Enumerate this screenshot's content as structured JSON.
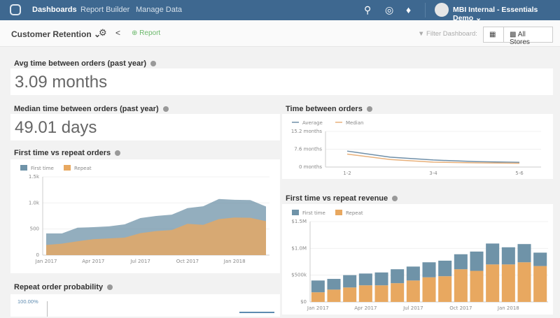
{
  "nav": {
    "items": [
      "Dashboards",
      "Report Builder",
      "Manage Data"
    ],
    "user": "MBI Internal - Essentials Demo ⌄",
    "icons": [
      "search-icon",
      "globe-icon",
      "bell-icon"
    ]
  },
  "sub": {
    "title": "Customer Retention ⌄",
    "report": "Report",
    "filter": "Filter Dashboard:",
    "stores": "All Stores"
  },
  "avg": {
    "title": "Avg time between orders (past year)",
    "value": "3.09 months"
  },
  "median": {
    "title": "Median time between orders (past year)",
    "value": "49.01 days"
  },
  "probability": {
    "title": "Repeat order probability",
    "tick": "100.00%"
  },
  "colors": {
    "first": "#6f93a8",
    "repeat": "#e8a860",
    "nav": "#3e6890"
  },
  "chart_data": [
    {
      "type": "area",
      "title": "First time vs repeat orders",
      "stacked": true,
      "x": [
        "Jan 2017",
        "Feb 2017",
        "Mar 2017",
        "Apr 2017",
        "May 2017",
        "Jun 2017",
        "Jul 2017",
        "Aug 2017",
        "Sep 2017",
        "Oct 2017",
        "Nov 2017",
        "Dec 2017",
        "Jan 2018",
        "Feb 2018",
        "Mar 2018"
      ],
      "xticklabels": [
        "Jan 2017",
        "Apr 2017",
        "Jul 2017",
        "Oct 2017",
        "Jan 2018"
      ],
      "yticklabels": [
        "0",
        "500",
        "1.0k",
        "1.5k"
      ],
      "ylim": [
        0,
        1500
      ],
      "legend": "top-left",
      "series": [
        {
          "name": "First time",
          "values": [
            220,
            195,
            260,
            230,
            230,
            255,
            290,
            290,
            295,
            300,
            355,
            385,
            340,
            340,
            280
          ]
        },
        {
          "name": "Repeat",
          "values": [
            195,
            220,
            265,
            305,
            320,
            335,
            420,
            460,
            480,
            600,
            580,
            690,
            720,
            715,
            650
          ]
        }
      ]
    },
    {
      "type": "line",
      "title": "Time between orders",
      "x": [
        "1-2",
        "2-3",
        "3-4",
        "4-5",
        "5-6"
      ],
      "xticklabels": [
        "1-2",
        "3-4",
        "5-6"
      ],
      "yticklabels": [
        "0 months",
        "7.6 months",
        "15.2 months"
      ],
      "ylim": [
        0,
        15.2
      ],
      "legend": "top-left",
      "series": [
        {
          "name": "Average",
          "values": [
            6.8,
            4.2,
            3.0,
            2.3,
            2.0
          ]
        },
        {
          "name": "Median",
          "values": [
            5.5,
            3.2,
            2.1,
            1.8,
            1.6
          ]
        }
      ]
    },
    {
      "type": "bar",
      "title": "First time vs repeat revenue",
      "stacked": true,
      "x": [
        "Jan 2017",
        "Feb 2017",
        "Mar 2017",
        "Apr 2017",
        "May 2017",
        "Jun 2017",
        "Jul 2017",
        "Aug 2017",
        "Sep 2017",
        "Oct 2017",
        "Nov 2017",
        "Dec 2017",
        "Jan 2018",
        "Feb 2018",
        "Mar 2018"
      ],
      "xticklabels": [
        "Jan 2017",
        "Apr 2017",
        "Jul 2017",
        "Oct 2017",
        "Jan 2018"
      ],
      "yticklabels": [
        "$0",
        "$500k",
        "$1.0M",
        "$1.5M"
      ],
      "ylim": [
        0,
        1500000
      ],
      "legend": "top-left",
      "series": [
        {
          "name": "First time",
          "values": [
            220000,
            200000,
            230000,
            220000,
            240000,
            260000,
            260000,
            280000,
            290000,
            280000,
            360000,
            390000,
            320000,
            340000,
            250000
          ]
        },
        {
          "name": "Repeat",
          "values": [
            180000,
            230000,
            270000,
            310000,
            310000,
            350000,
            400000,
            460000,
            480000,
            610000,
            580000,
            700000,
            700000,
            740000,
            670000
          ]
        }
      ]
    }
  ]
}
